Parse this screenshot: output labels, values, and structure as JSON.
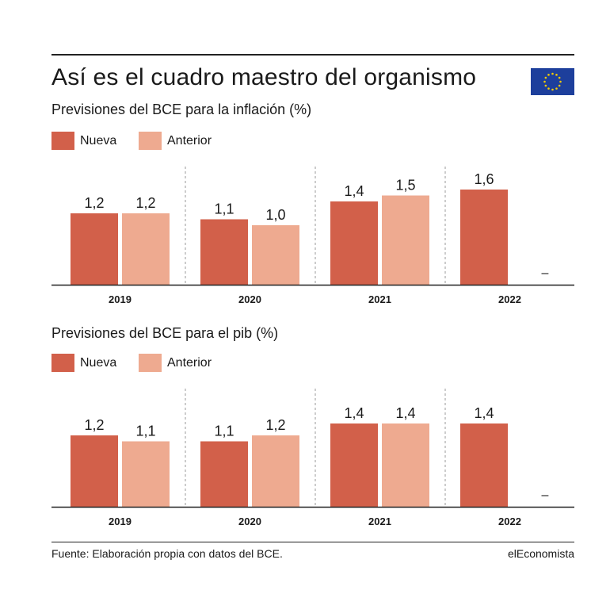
{
  "title": "Así es el cuadro maestro del organismo",
  "colors": {
    "nueva": "#d2604a",
    "anterior": "#eeaa90",
    "flag_blue": "#1d3f9c",
    "flag_star": "#f5cc00"
  },
  "legend": {
    "nueva": "Nueva",
    "anterior": "Anterior"
  },
  "source": "Fuente: Elaboración propia con datos del BCE.",
  "brand": "elEconomista",
  "chart_data": [
    {
      "type": "bar",
      "title": "Previsiones del BCE para la inflación (%)",
      "categories": [
        "2019",
        "2020",
        "2021",
        "2022"
      ],
      "series": [
        {
          "name": "Nueva",
          "values": [
            1.2,
            1.1,
            1.4,
            1.6
          ],
          "labels": [
            "1,2",
            "1,1",
            "1,4",
            "1,6"
          ]
        },
        {
          "name": "Anterior",
          "values": [
            1.2,
            1.0,
            1.5,
            null
          ],
          "labels": [
            "1,2",
            "1,0",
            "1,5",
            "–"
          ]
        }
      ]
    },
    {
      "type": "bar",
      "title": "Previsiones del BCE para el pib (%)",
      "categories": [
        "2019",
        "2020",
        "2021",
        "2022"
      ],
      "series": [
        {
          "name": "Nueva",
          "values": [
            1.2,
            1.1,
            1.4,
            1.4
          ],
          "labels": [
            "1,2",
            "1,1",
            "1,4",
            "1,4"
          ]
        },
        {
          "name": "Anterior",
          "values": [
            1.1,
            1.2,
            1.4,
            null
          ],
          "labels": [
            "1,1",
            "1,2",
            "1,4",
            "–"
          ]
        }
      ]
    }
  ]
}
